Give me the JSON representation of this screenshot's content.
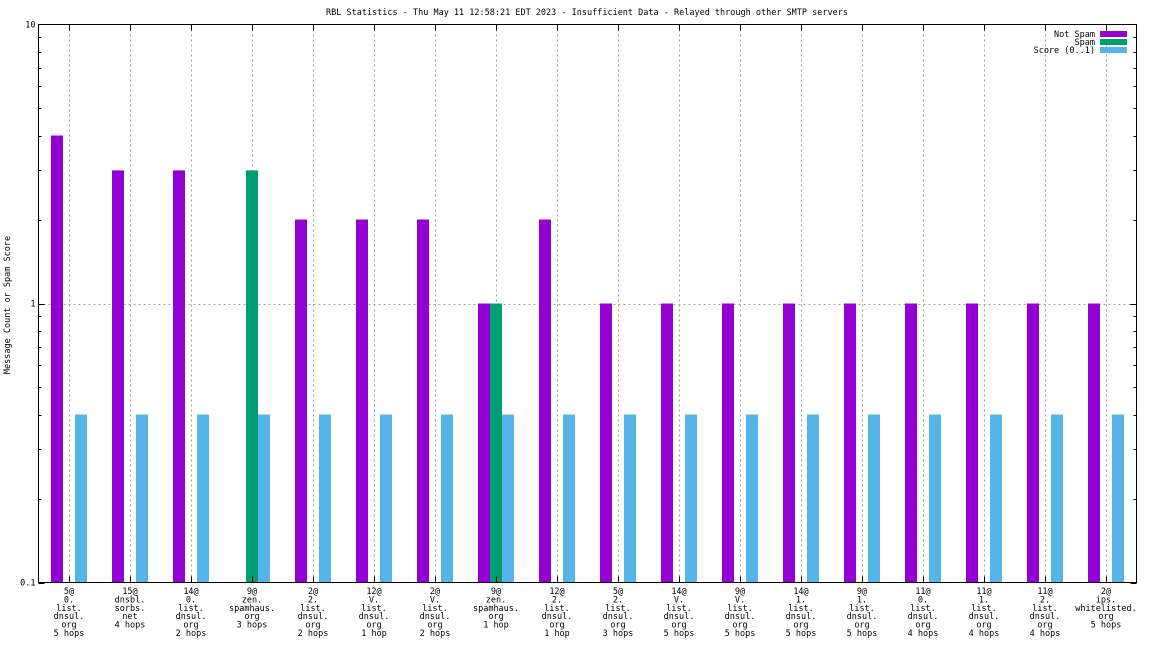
{
  "chart_data": {
    "type": "bar",
    "title": "RBL Statistics - Thu May 11 12:58:21 EDT 2023 - Insufficient Data - Relayed through other SMTP servers",
    "ylabel": "Message Count or Spam Score",
    "xlabel": "",
    "yscale": "log",
    "ylim": [
      0.1,
      10
    ],
    "yticks": [
      "0.1",
      "1",
      "10"
    ],
    "grid": true,
    "legend_position": "top-right",
    "categories": [
      [
        "5@",
        "0.",
        "list.",
        "dnsul.",
        "org",
        "5 hops"
      ],
      [
        "15@",
        "dnsbl.",
        "sorbs.",
        "net",
        "4 hops"
      ],
      [
        "14@",
        "0.",
        "list.",
        "dnsul.",
        "org",
        "2 hops"
      ],
      [
        "9@",
        "zen.",
        "spamhaus.",
        "org",
        "3 hops"
      ],
      [
        "2@",
        "2.",
        "list.",
        "dnsul.",
        "org",
        "2 hops"
      ],
      [
        "12@",
        "V.",
        "list.",
        "dnsul.",
        "org",
        "1 hop"
      ],
      [
        "2@",
        "V.",
        "list.",
        "dnsul.",
        "org",
        "2 hops"
      ],
      [
        "9@",
        "zen.",
        "spamhaus.",
        "org",
        "1 hop"
      ],
      [
        "12@",
        "2.",
        "list.",
        "dnsul.",
        "org",
        "1 hop"
      ],
      [
        "5@",
        "2.",
        "list.",
        "dnsul.",
        "org",
        "3 hops"
      ],
      [
        "14@",
        "V.",
        "list.",
        "dnsul.",
        "org",
        "5 hops"
      ],
      [
        "9@",
        "V.",
        "list.",
        "dnsul.",
        "org",
        "5 hops"
      ],
      [
        "14@",
        "1.",
        "list.",
        "dnsul.",
        "org",
        "5 hops"
      ],
      [
        "9@",
        "1.",
        "list.",
        "dnsul.",
        "org",
        "5 hops"
      ],
      [
        "11@",
        "0.",
        "list.",
        "dnsul.",
        "org",
        "4 hops"
      ],
      [
        "11@",
        "1.",
        "list.",
        "dnsul.",
        "org",
        "4 hops"
      ],
      [
        "11@",
        "2.",
        "list.",
        "dnsul.",
        "org",
        "4 hops"
      ],
      [
        "2@",
        "ips.",
        "whitelisted.",
        "org",
        "5 hops"
      ]
    ],
    "series": [
      {
        "name": "Not Spam",
        "color": "#9400d3",
        "values": [
          4,
          3,
          3,
          0,
          2,
          2,
          2,
          1,
          2,
          1,
          1,
          1,
          1,
          1,
          1,
          1,
          1,
          1
        ]
      },
      {
        "name": "Spam",
        "color": "#009e73",
        "values": [
          0,
          0,
          0,
          3,
          0,
          0,
          0,
          1,
          0,
          0,
          0,
          0,
          0,
          0,
          0,
          0,
          0,
          0
        ]
      },
      {
        "name": "Score (0..1)",
        "color": "#56b4e9",
        "values": [
          0.4,
          0.4,
          0.4,
          0.4,
          0.4,
          0.4,
          0.4,
          0.4,
          0.4,
          0.4,
          0.4,
          0.4,
          0.4,
          0.4,
          0.4,
          0.4,
          0.4,
          0.4
        ]
      }
    ]
  }
}
